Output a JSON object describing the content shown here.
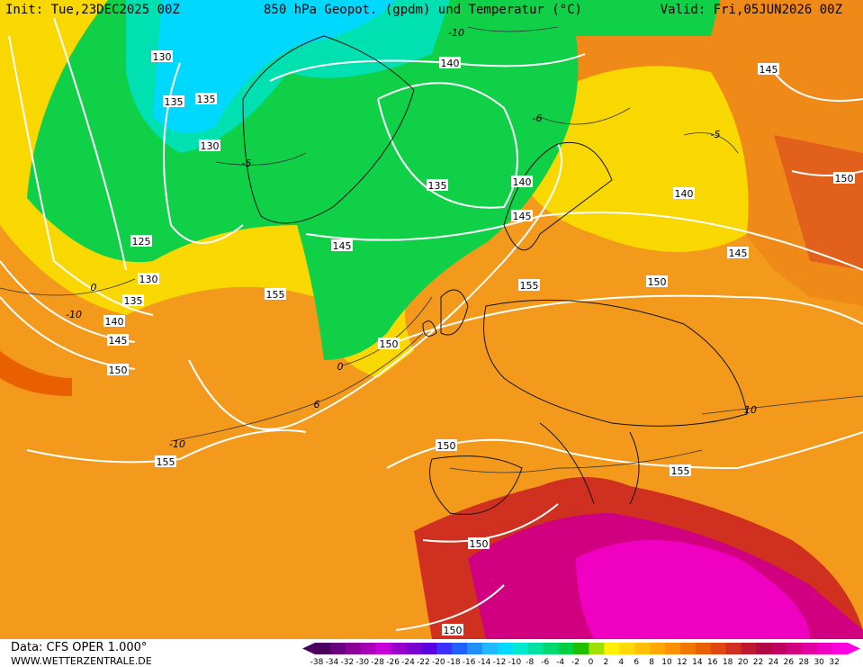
{
  "header": {
    "init": "Init: Tue,23DEC2025 00Z",
    "title": "850 hPa Geopot. (gpdm) und Temperatur (°C)",
    "valid": "Valid: Fri,05JUN2026 00Z"
  },
  "footer": {
    "data": "Data: CFS OPER 1.000°",
    "site": "WWW.WETTERZENTRALE.DE"
  },
  "colorbar": {
    "labels": [
      -38,
      -34,
      -32,
      -30,
      -28,
      -26,
      -24,
      -22,
      -20,
      -18,
      -16,
      -14,
      -12,
      -10,
      -8,
      -6,
      -4,
      -2,
      0,
      2,
      4,
      6,
      8,
      10,
      12,
      14,
      16,
      18,
      20,
      22,
      24,
      26,
      28,
      30,
      32
    ],
    "colors": [
      "#4b0060",
      "#6a007f",
      "#8a0099",
      "#a800b8",
      "#c800d8",
      "#9900cc",
      "#7a00d0",
      "#5a00e0",
      "#3a30ff",
      "#2060ff",
      "#2090ff",
      "#20b8ff",
      "#00d8ff",
      "#00e8d0",
      "#00e0a0",
      "#00d870",
      "#00d040",
      "#20c000",
      "#a0e000",
      "#fff000",
      "#ffd800",
      "#ffc000",
      "#ffa800",
      "#ff9000",
      "#f07800",
      "#e86000",
      "#e04810",
      "#d03020",
      "#c01830",
      "#b00840",
      "#c00060",
      "#d00080",
      "#e000a0",
      "#f000c0",
      "#ff00e0"
    ]
  },
  "geopotential_labels": [
    "130",
    "135",
    "135",
    "130",
    "125",
    "130",
    "135",
    "140",
    "145",
    "150",
    "155",
    "155",
    "145",
    "135",
    "140",
    "140",
    "145",
    "155",
    "150",
    "150",
    "150",
    "150",
    "155",
    "150",
    "145",
    "140",
    "145",
    "150"
  ],
  "temperature_labels": [
    "-10",
    "-6",
    "-5",
    "0",
    "-10",
    "0",
    "6",
    "-10",
    "-5",
    "10"
  ]
}
